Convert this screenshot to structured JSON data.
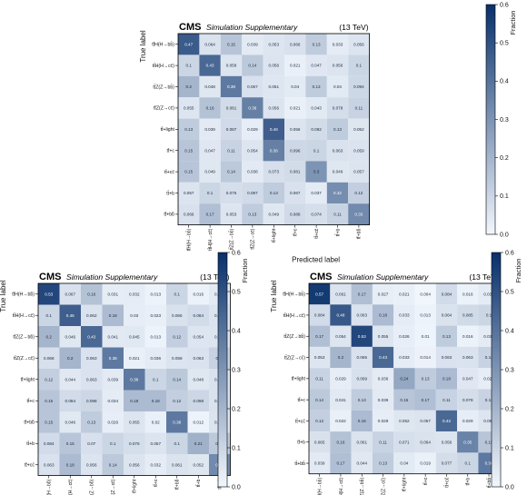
{
  "colormap": {
    "low": "#f2f7fd",
    "high": "#08306b"
  },
  "chart_data": [
    {
      "type": "heatmap",
      "title_bold": "CMS",
      "title_italic": "Simulation Supplementary",
      "title_suffix": "(13 TeV)",
      "xlabel": "Predicted label",
      "ylabel": "True label",
      "colorbar_label": "Fraction",
      "colorbar_ticks": [
        "0.0",
        "0.1",
        "0.2",
        "0.3",
        "0.4",
        "0.5",
        "0.6"
      ],
      "zlim": [
        0,
        0.6
      ],
      "grid": false,
      "legend": "colorbar-right",
      "categories": [
        "tt̄H(H→bb̄)",
        "tt̄H(H→cc̄)",
        "tt̄Z(Z→bb̄)",
        "tt̄Z(Z→cc̄)",
        "tt̄+light",
        "tt̄+c",
        "tt̄+cc̄",
        "tt̄+b",
        "tt̄+bb̄"
      ],
      "values": [
        [
          0.47,
          0.064,
          0.15,
          0.039,
          0.053,
          0.066,
          0.13,
          0.033,
          0.056
        ],
        [
          0.1,
          0.43,
          0.058,
          0.14,
          0.056,
          0.021,
          0.047,
          0.056,
          0.1
        ],
        [
          0.2,
          0.048,
          0.38,
          0.067,
          0.051,
          0.04,
          0.13,
          0.04,
          0.094
        ],
        [
          0.055,
          0.16,
          0.081,
          0.36,
          0.056,
          0.021,
          0.043,
          0.078,
          0.11
        ],
        [
          0.13,
          0.039,
          0.087,
          0.029,
          0.46,
          0.056,
          0.082,
          0.13,
          0.052
        ],
        [
          0.15,
          0.047,
          0.11,
          0.054,
          0.36,
          0.096,
          0.1,
          0.063,
          0.059
        ],
        [
          0.15,
          0.049,
          0.14,
          0.038,
          0.073,
          0.081,
          0.3,
          0.049,
          0.057
        ],
        [
          0.057,
          0.1,
          0.075,
          0.087,
          0.13,
          0.067,
          0.037,
          0.32,
          0.12
        ],
        [
          0.066,
          0.17,
          0.053,
          0.13,
          0.049,
          0.088,
          0.074,
          0.11,
          0.33
        ]
      ]
    },
    {
      "type": "heatmap",
      "title_bold": "CMS",
      "title_italic": "Simulation Supplementary",
      "title_suffix": "(13 TeV)",
      "xlabel": "Predicted label",
      "ylabel": "True label",
      "colorbar_label": "Fraction",
      "colorbar_ticks": [
        "0.0",
        "0.1",
        "0.2",
        "0.3",
        "0.4",
        "0.5",
        "0.6"
      ],
      "zlim": [
        0,
        0.6
      ],
      "grid": false,
      "legend": "colorbar-right",
      "categories": [
        "tt̄H(H→bb̄)",
        "tt̄H(H→cc̄)",
        "tt̄Z(Z→bb̄)",
        "tt̄Z(Z→cc̄)",
        "tt̄+light",
        "tt̄+c",
        "tt̄+bb̄",
        "tt̄+b",
        "tt̄+cc̄"
      ],
      "values": [
        [
          0.53,
          0.067,
          0.16,
          0.031,
          0.032,
          0.013,
          0.1,
          0.016,
          0.039
        ],
        [
          0.1,
          0.46,
          0.062,
          0.18,
          0.03,
          0.023,
          0.065,
          0.084,
          0.056
        ],
        [
          0.2,
          0.046,
          0.43,
          0.041,
          0.045,
          0.013,
          0.12,
          0.054,
          0.053
        ],
        [
          0.068,
          0.2,
          0.063,
          0.38,
          0.021,
          0.036,
          0.058,
          0.063,
          0.11
        ],
        [
          0.12,
          0.044,
          0.063,
          0.039,
          0.38,
          0.1,
          0.14,
          0.048,
          0.063
        ],
        [
          0.15,
          0.084,
          0.098,
          0.034,
          0.18,
          0.18,
          0.12,
          0.098,
          0.062
        ],
        [
          0.15,
          0.046,
          0.13,
          0.026,
          0.055,
          0.02,
          0.38,
          0.012,
          0.058
        ],
        [
          0.084,
          0.15,
          0.07,
          0.1,
          0.076,
          0.057,
          0.1,
          0.21,
          0.14
        ],
        [
          0.063,
          0.18,
          0.056,
          0.14,
          0.056,
          0.032,
          0.061,
          0.052,
          0.33
        ]
      ]
    },
    {
      "type": "heatmap",
      "title_bold": "CMS",
      "title_italic": "Simulation Supplementary",
      "title_suffix": "(13 TeV)",
      "xlabel": "Predicted label",
      "ylabel": "True label",
      "colorbar_label": "Fraction",
      "colorbar_ticks": [
        "0.0",
        "0.1",
        "0.2",
        "0.3",
        "0.4",
        "0.5",
        "0.6"
      ],
      "zlim": [
        0,
        0.6
      ],
      "grid": false,
      "legend": "colorbar-right",
      "categories": [
        "tt̄H(H→bb̄)",
        "tt̄H(H→cc̄)",
        "tt̄Z(Z→bb̄)",
        "tt̄Z(Z→cc̄)",
        "tt̄+light",
        "tt̄+c",
        "tt̄+cc̄",
        "tt̄+b",
        "tt̄+bb̄"
      ],
      "values": [
        [
          0.57,
          0.061,
          0.17,
          0.027,
          0.021,
          0.004,
          0.084,
          0.016,
          0.035
        ],
        [
          0.084,
          0.48,
          0.063,
          0.18,
          0.033,
          0.013,
          0.064,
          0.085,
          0.1
        ],
        [
          0.17,
          0.054,
          0.53,
          0.055,
          0.026,
          0.01,
          0.13,
          0.016,
          0.037
        ],
        [
          0.053,
          0.2,
          0.065,
          0.43,
          0.033,
          0.014,
          0.063,
          0.063,
          0.11
        ],
        [
          0.11,
          0.029,
          0.069,
          0.036,
          0.24,
          0.13,
          0.18,
          0.047,
          0.029
        ],
        [
          0.14,
          0.041,
          0.13,
          0.039,
          0.15,
          0.17,
          0.11,
          0.078,
          0.11
        ],
        [
          0.12,
          0.022,
          0.18,
          0.029,
          0.052,
          0.057,
          0.43,
          0.029,
          0.053
        ],
        [
          0.065,
          0.16,
          0.061,
          0.11,
          0.071,
          0.064,
          0.056,
          0.35,
          0.15
        ],
        [
          0.039,
          0.17,
          0.044,
          0.13,
          0.04,
          0.019,
          0.077,
          0.1,
          0.38
        ]
      ]
    }
  ]
}
